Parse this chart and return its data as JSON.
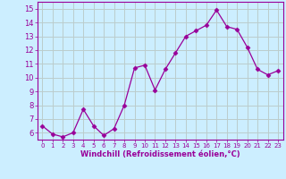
{
  "x": [
    0,
    1,
    2,
    3,
    4,
    5,
    6,
    7,
    8,
    9,
    10,
    11,
    12,
    13,
    14,
    15,
    16,
    17,
    18,
    19,
    20,
    21,
    22,
    23
  ],
  "y": [
    6.5,
    5.9,
    5.7,
    6.0,
    7.7,
    6.5,
    5.8,
    6.3,
    8.0,
    10.7,
    10.9,
    9.1,
    10.6,
    11.8,
    13.0,
    13.4,
    13.8,
    14.9,
    13.7,
    13.5,
    12.2,
    10.6,
    10.2,
    10.5
  ],
  "line_color": "#990099",
  "marker": "D",
  "marker_size": 2.5,
  "bg_color": "#cceeff",
  "grid_color": "#bbcccc",
  "xlabel": "Windchill (Refroidissement éolien,°C)",
  "xlabel_color": "#990099",
  "tick_color": "#990099",
  "ylim": [
    5.5,
    15.5
  ],
  "yticks": [
    6,
    7,
    8,
    9,
    10,
    11,
    12,
    13,
    14,
    15
  ],
  "xlim": [
    -0.5,
    23.5
  ],
  "xticks": [
    0,
    1,
    2,
    3,
    4,
    5,
    6,
    7,
    8,
    9,
    10,
    11,
    12,
    13,
    14,
    15,
    16,
    17,
    18,
    19,
    20,
    21,
    22,
    23
  ]
}
